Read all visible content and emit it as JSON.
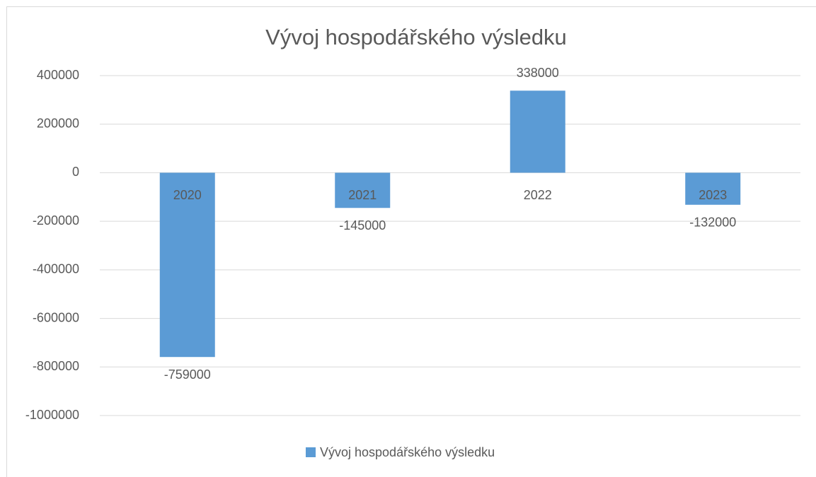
{
  "chart_data": {
    "type": "bar",
    "title": "Vývoj hospodářského výsledku",
    "categories": [
      "2020",
      "2021",
      "2022",
      "2023"
    ],
    "series": [
      {
        "name": "Vývoj hospodářského výsledku",
        "color": "#5b9bd5",
        "values": [
          -759000,
          -145000,
          338000,
          -132000
        ]
      }
    ],
    "ylim": [
      -1000000,
      400000
    ],
    "yticks": [
      -1000000,
      -800000,
      -600000,
      -400000,
      -200000,
      0,
      200000,
      400000
    ],
    "grid": true,
    "legend": "bottom"
  }
}
